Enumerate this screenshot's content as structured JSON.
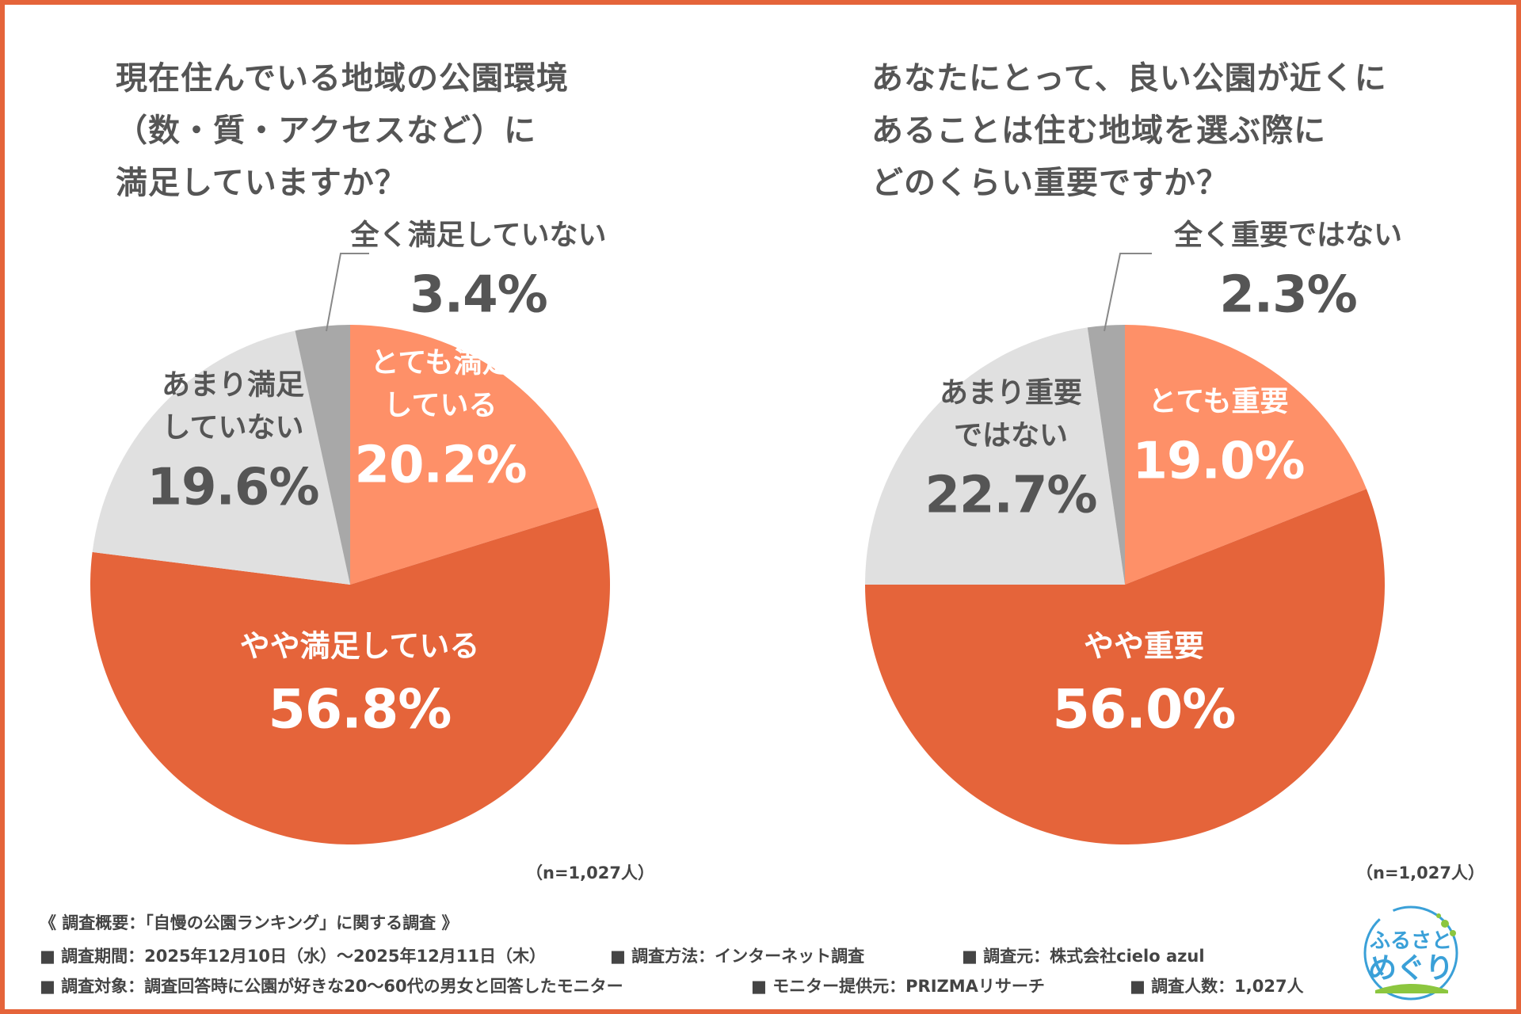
{
  "colors": {
    "frame": "#e5643a",
    "very": "#fe9068",
    "somewhat": "#e5643a",
    "not_really": "#e0e0e0",
    "not_at_all": "#a8a8a8",
    "text_dark": "#555555",
    "text_light": "#ffffff"
  },
  "charts": [
    {
      "question": "現在住んでいる地域の公園環境\n（数・質・アクセスなど）に\n満足していますか？",
      "n_note": "（n=1,027人）"
    },
    {
      "question": "あなたにとって、良い公園が近くに\nあることは住む地域を選ぶ際に\nどのくらい重要ですか？",
      "n_note": "（n=1,027人）"
    }
  ],
  "chart_data": [
    {
      "type": "pie",
      "title": "現在住んでいる地域の公園環境（数・質・アクセスなど）に満足していますか？",
      "slices": [
        {
          "label_lines": [
            "とても満足",
            "している"
          ],
          "value": 20.2,
          "value_text": "20.2%"
        },
        {
          "label_lines": [
            "やや満足している"
          ],
          "value": 56.8,
          "value_text": "56.8%"
        },
        {
          "label_lines": [
            "あまり満足",
            "していない"
          ],
          "value": 19.6,
          "value_text": "19.6%"
        },
        {
          "label_lines": [
            "全く満足していない"
          ],
          "value": 3.4,
          "value_text": "3.4%"
        }
      ]
    },
    {
      "type": "pie",
      "title": "あなたにとって、良い公園が近くにあることは住む地域を選ぶ際にどのくらい重要ですか？",
      "slices": [
        {
          "label_lines": [
            "とても重要"
          ],
          "value": 19.0,
          "value_text": "19.0%"
        },
        {
          "label_lines": [
            "やや重要"
          ],
          "value": 56.0,
          "value_text": "56.0%"
        },
        {
          "label_lines": [
            "あまり重要",
            "ではない"
          ],
          "value": 22.7,
          "value_text": "22.7%"
        },
        {
          "label_lines": [
            "全く重要ではない"
          ],
          "value": 2.3,
          "value_text": "2.3%"
        }
      ]
    }
  ],
  "footer": {
    "title": "《 調査概要：「自慢の公園ランキング」に関する調査 》",
    "items": [
      "■ 調査期間：2025年12月10日（水）〜2025年12月11日（木）",
      "■ 調査方法：インターネット調査",
      "■ 調査元：株式会社cielo azul",
      "■ 調査対象：調査回答時に公園が好きな20〜60代の男女と回答したモニター",
      "■ モニター提供元：PRIZMAリサーチ",
      "■ 調査人数：1,027人"
    ]
  },
  "logo": {
    "line1": "ふるさと",
    "line2": "めぐり"
  }
}
